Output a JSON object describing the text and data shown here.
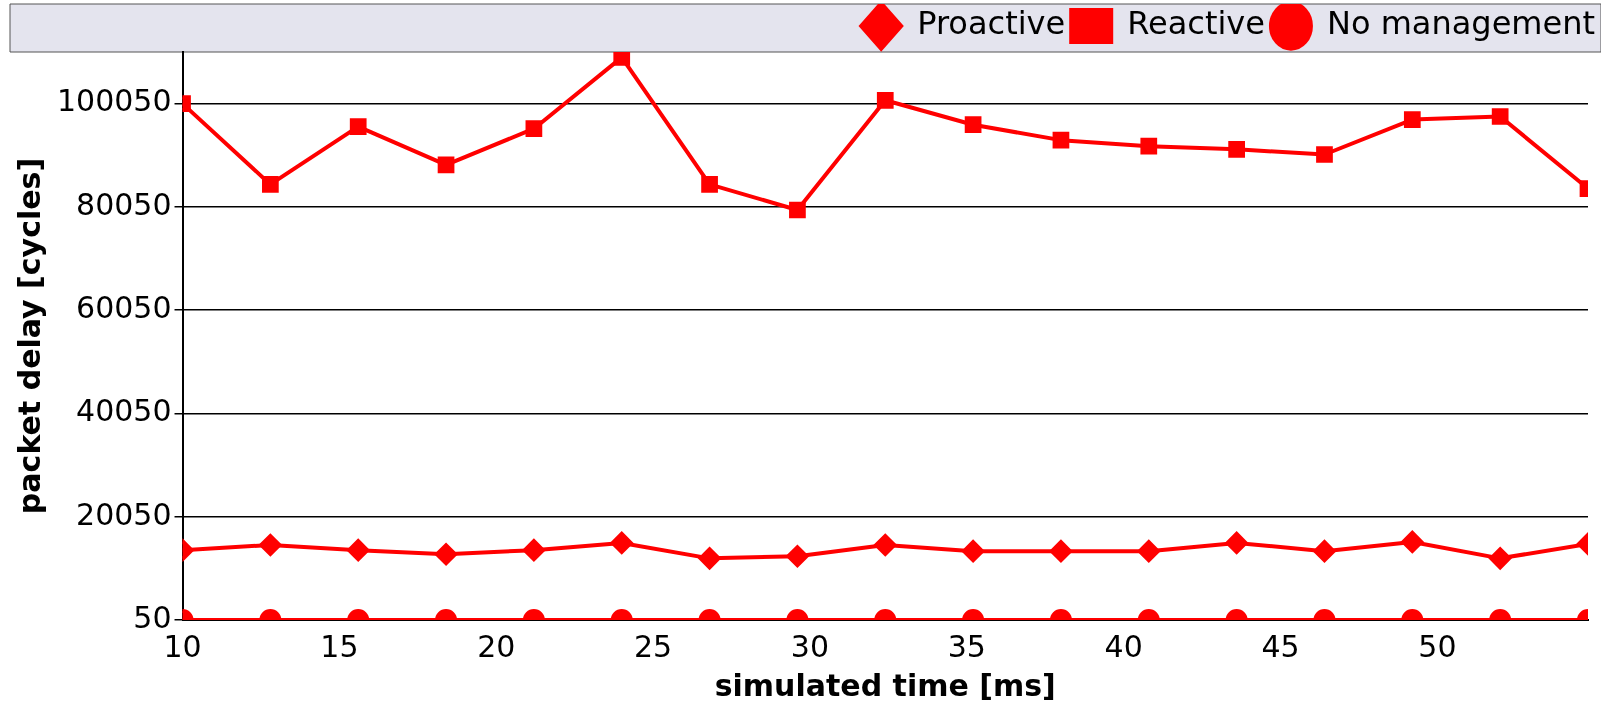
{
  "chart_data": {
    "type": "line",
    "xlabel": "simulated time [ms]",
    "ylabel": "packet delay [cycles]",
    "x": [
      10,
      12.8,
      15.6,
      18.4,
      21.2,
      24,
      26.8,
      29.6,
      32.4,
      35.2,
      38,
      40.8,
      43.6,
      46.4,
      49.2,
      52,
      54.8
    ],
    "xlim": [
      10,
      54.8
    ],
    "xticks": [
      10,
      15,
      20,
      25,
      30,
      35,
      40,
      45,
      50
    ],
    "ylim": [
      50,
      110050
    ],
    "yticks": [
      50,
      20050,
      40050,
      60050,
      80050,
      100050
    ],
    "grid": "y",
    "legend": "top right",
    "line_style": "solid",
    "series": [
      {
        "name": "Proactive",
        "color": "#ff0000",
        "marker": "diamond",
        "values": [
          13580,
          14580,
          13580,
          12790,
          13580,
          14980,
          11990,
          12390,
          14580,
          13380,
          13380,
          13380,
          14980,
          13380,
          15170,
          11990,
          14780
        ]
      },
      {
        "name": "Reactive",
        "color": "#ff0000",
        "marker": "square",
        "values": [
          100050,
          84400,
          95600,
          88200,
          95200,
          109000,
          84400,
          79450,
          100700,
          95970,
          92980,
          91800,
          91200,
          90200,
          96960,
          97560,
          83600
        ]
      },
      {
        "name": "No management",
        "color": "#ff0000",
        "marker": "circle",
        "values": [
          50,
          50,
          50,
          50,
          50,
          50,
          50,
          50,
          50,
          50,
          50,
          50,
          50,
          50,
          50,
          50,
          50
        ]
      }
    ]
  }
}
